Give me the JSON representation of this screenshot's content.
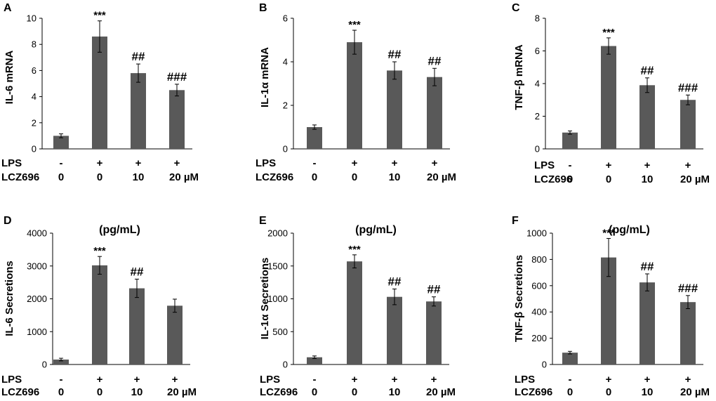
{
  "figure": {
    "x_rows": {
      "lps": {
        "label": "LPS",
        "values": [
          "-",
          "+",
          "+",
          "+"
        ]
      },
      "lcz696": {
        "label": "LCZ696",
        "values": [
          "0",
          "0",
          "10",
          "20 µM"
        ]
      }
    }
  },
  "chart_data": [
    {
      "panel": "A",
      "type": "bar",
      "ylabel": "IL-6 mRNA",
      "title": "",
      "categories": [
        "Control",
        "LPS",
        "LPS + LCZ696 10",
        "LPS + LCZ696 20 µM"
      ],
      "values": [
        1.0,
        8.6,
        5.8,
        4.5
      ],
      "errors": [
        0.15,
        1.2,
        0.7,
        0.45
      ],
      "annotations": [
        "",
        "***",
        "##",
        "###"
      ],
      "ylim": [
        0,
        10
      ],
      "yticks": [
        0,
        2,
        4,
        6,
        8,
        10
      ],
      "color": "#595959"
    },
    {
      "panel": "B",
      "type": "bar",
      "ylabel": "IL-1α mRNA",
      "title": "",
      "categories": [
        "Control",
        "LPS",
        "LPS + LCZ696 10",
        "LPS + LCZ696 20 µM"
      ],
      "values": [
        1.0,
        4.9,
        3.6,
        3.3
      ],
      "errors": [
        0.1,
        0.55,
        0.4,
        0.4
      ],
      "annotations": [
        "",
        "***",
        "##",
        "##"
      ],
      "ylim": [
        0,
        6
      ],
      "yticks": [
        0,
        2,
        4,
        6
      ],
      "color": "#595959"
    },
    {
      "panel": "C",
      "type": "bar",
      "ylabel": "TNF-β mRNA",
      "title": "",
      "categories": [
        "Control",
        "LPS",
        "LPS + LCZ696 10",
        "LPS + LCZ696 20 µM"
      ],
      "values": [
        1.0,
        6.3,
        3.9,
        3.0
      ],
      "errors": [
        0.1,
        0.5,
        0.45,
        0.3
      ],
      "annotations": [
        "",
        "***",
        "##",
        "###"
      ],
      "ylim": [
        0,
        8
      ],
      "yticks": [
        0,
        2,
        4,
        6,
        8
      ],
      "color": "#595959"
    },
    {
      "panel": "D",
      "type": "bar",
      "ylabel": "IL-6 Secretions",
      "title": "(pg/mL)",
      "categories": [
        "Control",
        "LPS",
        "LPS + LCZ696 10",
        "LPS + LCZ696 20 µM"
      ],
      "values": [
        150,
        3020,
        2320,
        1790
      ],
      "errors": [
        40,
        270,
        280,
        200
      ],
      "annotations": [
        "",
        "***",
        "##",
        ""
      ],
      "ylim": [
        0,
        4000
      ],
      "yticks": [
        0,
        1000,
        2000,
        3000,
        4000
      ],
      "color": "#595959"
    },
    {
      "panel": "E",
      "type": "bar",
      "ylabel": "IL-1α Secretions",
      "title": "(pg/mL)",
      "categories": [
        "Control",
        "LPS",
        "LPS + LCZ696 10",
        "LPS + LCZ696 20 µM"
      ],
      "values": [
        110,
        1570,
        1030,
        960
      ],
      "errors": [
        20,
        100,
        120,
        70
      ],
      "annotations": [
        "",
        "***",
        "##",
        "##"
      ],
      "ylim": [
        0,
        2000
      ],
      "yticks": [
        0,
        500,
        1000,
        1500,
        2000
      ],
      "color": "#595959"
    },
    {
      "panel": "F",
      "type": "bar",
      "ylabel": "TNF-β Secretions",
      "title": "(pg/mL)",
      "categories": [
        "Control",
        "LPS",
        "LPS + LCZ696 10",
        "LPS + LCZ696 20 µM"
      ],
      "values": [
        90,
        815,
        625,
        475
      ],
      "errors": [
        10,
        145,
        65,
        50
      ],
      "annotations": [
        "",
        "***",
        "##",
        "###"
      ],
      "ylim": [
        0,
        1000
      ],
      "yticks": [
        0,
        200,
        400,
        600,
        800,
        1000
      ],
      "color": "#595959"
    }
  ]
}
